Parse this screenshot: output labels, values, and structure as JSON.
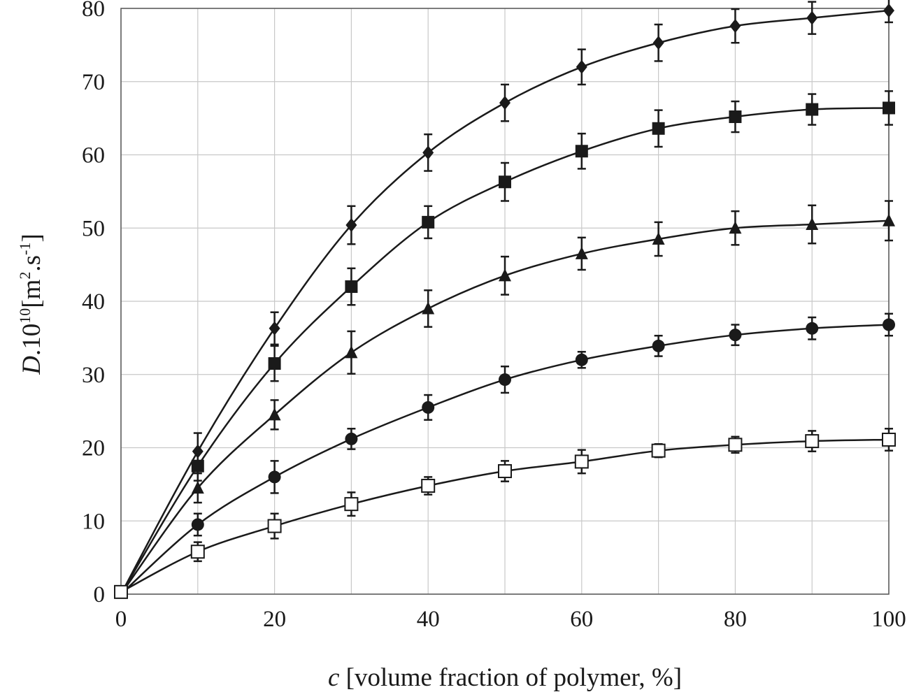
{
  "chart_data": {
    "type": "line",
    "title": "",
    "xlabel": {
      "italic": "c",
      "rest": " [volume fraction of polymer, %]"
    },
    "ylabel": {
      "italic": "D",
      "rest": ".10",
      "sup1": "10",
      "mid": "[m",
      "sup2": "2",
      "mid2": ".s",
      "sup3": "-1",
      "end": "]"
    },
    "xlim": [
      0,
      100
    ],
    "ylim": [
      0,
      80
    ],
    "grid": true,
    "legend": "none",
    "x_ticks": [
      "0",
      "20",
      "40",
      "60",
      "80",
      "100"
    ],
    "y_ticks": [
      "0",
      "10",
      "20",
      "30",
      "40",
      "50",
      "60",
      "70",
      "80"
    ],
    "x": [
      0,
      10,
      20,
      30,
      40,
      50,
      60,
      70,
      80,
      90,
      100
    ],
    "series": [
      {
        "marker": "diamond-filled",
        "values": [
          0,
          19.5,
          36.3,
          50.4,
          60.3,
          67.1,
          72.0,
          75.3,
          77.6,
          78.7,
          79.7
        ],
        "errors": [
          0,
          2.5,
          2.2,
          2.6,
          2.5,
          2.5,
          2.4,
          2.5,
          2.3,
          2.2,
          1.6
        ]
      },
      {
        "marker": "square-filled",
        "values": [
          0,
          17.5,
          31.5,
          42.0,
          50.8,
          56.3,
          60.5,
          63.6,
          65.2,
          66.2,
          66.4
        ],
        "errors": [
          0,
          2.0,
          2.4,
          2.5,
          2.2,
          2.6,
          2.4,
          2.5,
          2.1,
          2.1,
          2.3
        ]
      },
      {
        "marker": "triangle-filled",
        "values": [
          0,
          14.5,
          24.5,
          33.0,
          39.0,
          43.5,
          46.5,
          48.5,
          50.0,
          50.5,
          51.0
        ],
        "errors": [
          0,
          2.0,
          2.0,
          2.9,
          2.5,
          2.6,
          2.2,
          2.3,
          2.3,
          2.6,
          2.7
        ]
      },
      {
        "marker": "circle-filled",
        "values": [
          0,
          9.5,
          16.0,
          21.2,
          25.5,
          29.3,
          32.0,
          33.9,
          35.4,
          36.3,
          36.8
        ],
        "errors": [
          0,
          1.5,
          2.2,
          1.4,
          1.7,
          1.8,
          1.1,
          1.4,
          1.4,
          1.5,
          1.5
        ]
      },
      {
        "marker": "square-open",
        "values": [
          0.3,
          5.8,
          9.3,
          12.3,
          14.8,
          16.8,
          18.1,
          19.6,
          20.4,
          20.9,
          21.1
        ],
        "errors": [
          0,
          1.3,
          1.7,
          1.6,
          1.2,
          1.4,
          1.6,
          0.9,
          1.1,
          1.4,
          1.5
        ]
      }
    ]
  }
}
